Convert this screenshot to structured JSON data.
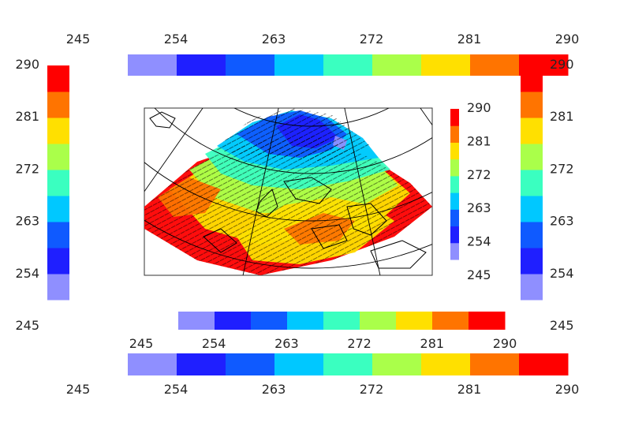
{
  "chart_data": {
    "type": "heatmap",
    "title": "",
    "description_note": "",
    "colormap": [
      "#8f8fff",
      "#1f1fff",
      "#0f5aff",
      "#00c8ff",
      "#3affc0",
      "#aaff4a",
      "#ffe000",
      "#ff7400",
      "#ff0000"
    ],
    "colorbar": {
      "boundaries": [
        245,
        250,
        254,
        259,
        263,
        268,
        272,
        277,
        281,
        286,
        290
      ],
      "tick_labels": [
        "245",
        "254",
        "263",
        "272",
        "281",
        "290"
      ]
    },
    "map": {
      "projection": "conic",
      "vectors": true,
      "coastlines": true,
      "graticule": true,
      "field_min": 245,
      "field_max": 290
    }
  }
}
